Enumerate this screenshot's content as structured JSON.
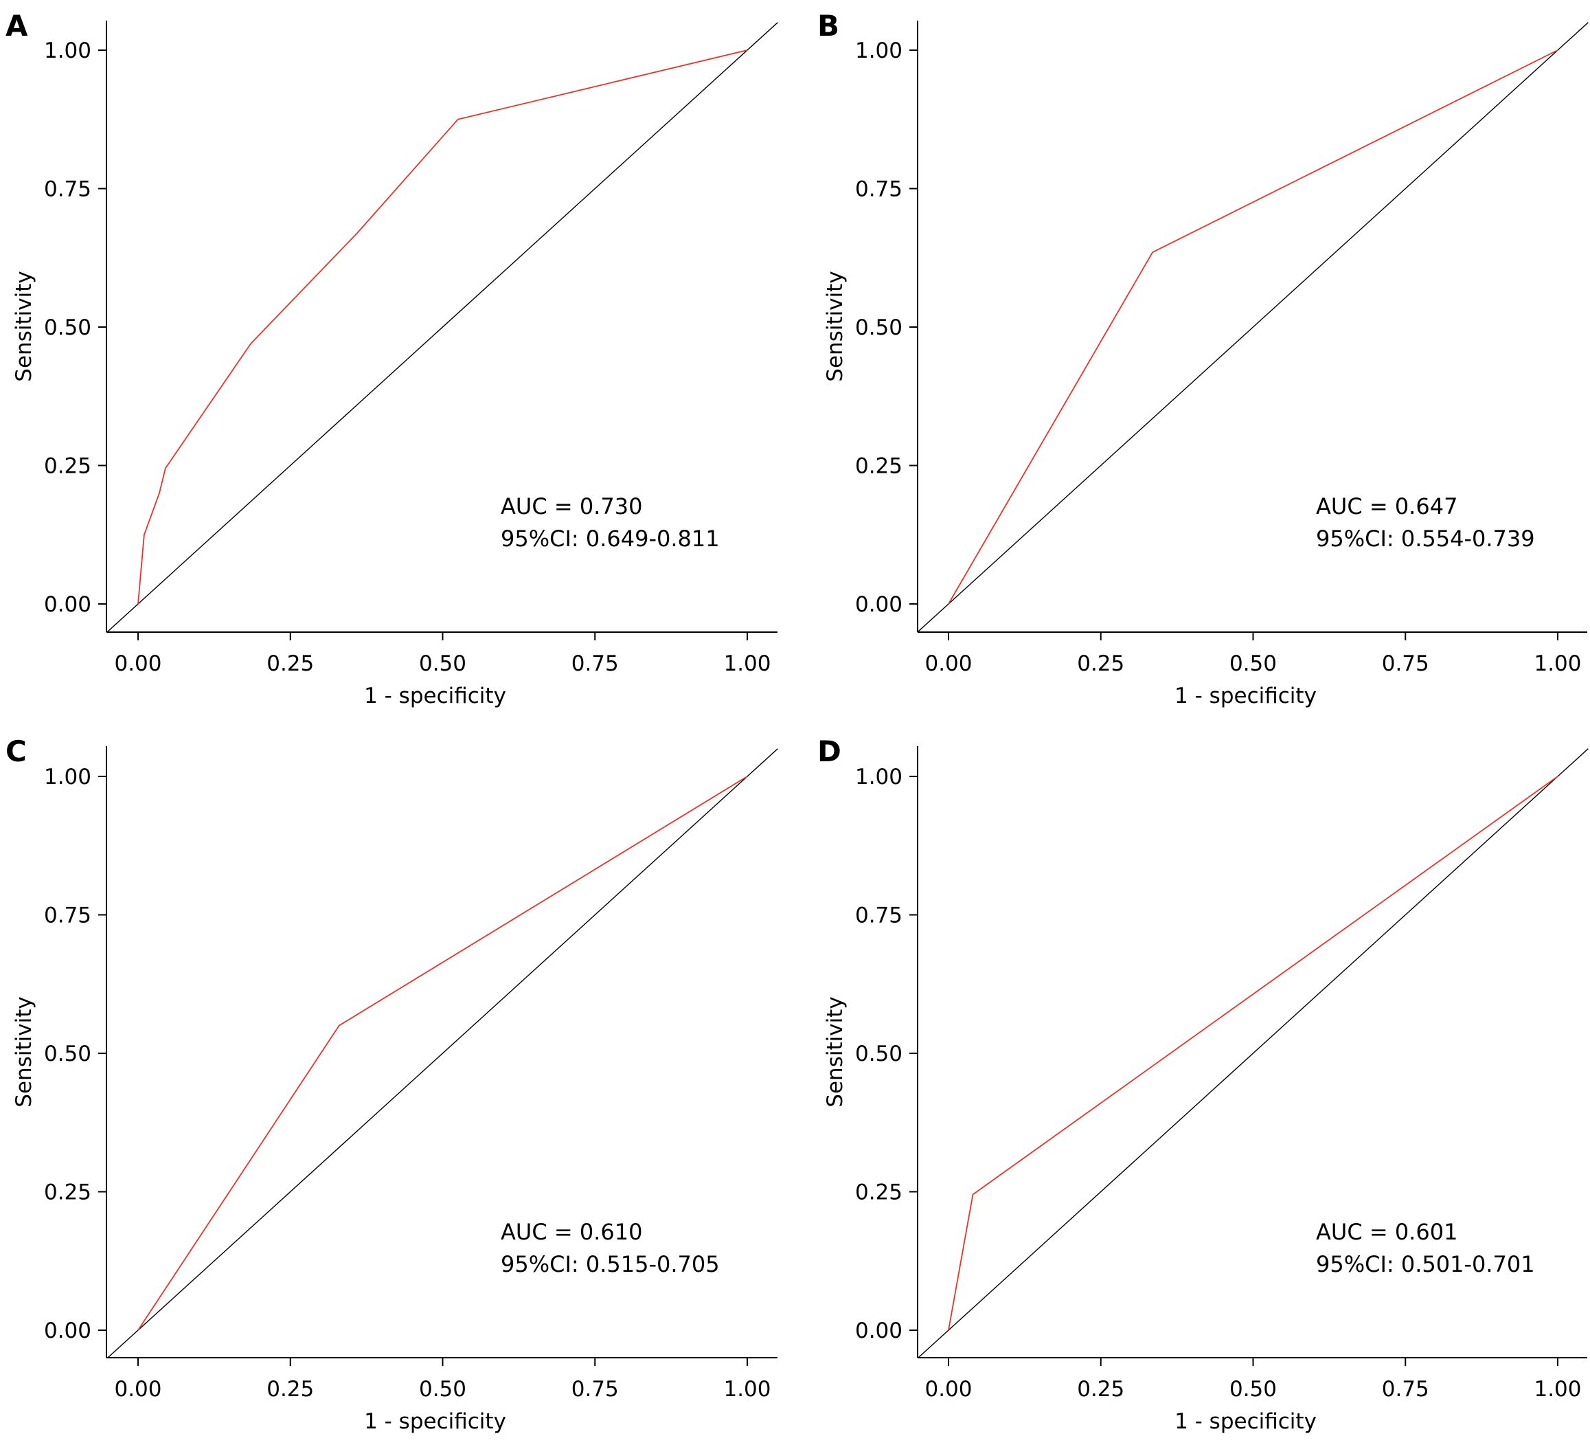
{
  "chart_data": [
    {
      "panel": "A",
      "type": "line",
      "xlabel": "1 - specificity",
      "ylabel": "Sensitivity",
      "xlim": [
        0,
        1
      ],
      "ylim": [
        0,
        1
      ],
      "x_ticks": [
        "0.00",
        "0.25",
        "0.50",
        "0.75",
        "1.00"
      ],
      "y_ticks": [
        "0.00",
        "0.25",
        "0.50",
        "0.75",
        "1.00"
      ],
      "series": [
        {
          "color": "#e8332a",
          "x": [
            0,
            0.01,
            0.035,
            0.045,
            0.185,
            0.36,
            0.525,
            1.0
          ],
          "y": [
            0,
            0.125,
            0.2,
            0.245,
            0.47,
            0.67,
            0.875,
            1.0
          ]
        },
        {
          "color": "#000000",
          "x": [
            0,
            1
          ],
          "y": [
            0,
            1
          ]
        }
      ],
      "annotations": [
        "AUC = 0.730",
        "95%CI: 0.649-0.811"
      ]
    },
    {
      "panel": "B",
      "type": "line",
      "xlabel": "1 - specificity",
      "ylabel": "Sensitivity",
      "xlim": [
        0,
        1
      ],
      "ylim": [
        0,
        1
      ],
      "x_ticks": [
        "0.00",
        "0.25",
        "0.50",
        "0.75",
        "1.00"
      ],
      "y_ticks": [
        "0.00",
        "0.25",
        "0.50",
        "0.75",
        "1.00"
      ],
      "series": [
        {
          "color": "#e8332a",
          "x": [
            0,
            0.335,
            1.0
          ],
          "y": [
            0,
            0.635,
            1.0
          ]
        },
        {
          "color": "#000000",
          "x": [
            0,
            1
          ],
          "y": [
            0,
            1
          ]
        }
      ],
      "annotations": [
        "AUC = 0.647",
        "95%CI: 0.554-0.739"
      ]
    },
    {
      "panel": "C",
      "type": "line",
      "xlabel": "1 - specificity",
      "ylabel": "Sensitivity",
      "xlim": [
        0,
        1
      ],
      "ylim": [
        0,
        1
      ],
      "x_ticks": [
        "0.00",
        "0.25",
        "0.50",
        "0.75",
        "1.00"
      ],
      "y_ticks": [
        "0.00",
        "0.25",
        "0.50",
        "0.75",
        "1.00"
      ],
      "series": [
        {
          "color": "#e8332a",
          "x": [
            0,
            0.33,
            1.0
          ],
          "y": [
            0,
            0.55,
            1.0
          ]
        },
        {
          "color": "#000000",
          "x": [
            0,
            1
          ],
          "y": [
            0,
            1
          ]
        }
      ],
      "annotations": [
        "AUC = 0.610",
        "95%CI: 0.515-0.705"
      ]
    },
    {
      "panel": "D",
      "type": "line",
      "xlabel": "1 - specificity",
      "ylabel": "Sensitivity",
      "xlim": [
        0,
        1
      ],
      "ylim": [
        0,
        1
      ],
      "x_ticks": [
        "0.00",
        "0.25",
        "0.50",
        "0.75",
        "1.00"
      ],
      "y_ticks": [
        "0.00",
        "0.25",
        "0.50",
        "0.75",
        "1.00"
      ],
      "series": [
        {
          "color": "#e8332a",
          "x": [
            0,
            0.04,
            1.0
          ],
          "y": [
            0,
            0.245,
            1.0
          ]
        },
        {
          "color": "#000000",
          "x": [
            0,
            1
          ],
          "y": [
            0,
            1
          ]
        }
      ],
      "annotations": [
        "AUC = 0.601",
        "95%CI: 0.501-0.701"
      ]
    }
  ]
}
